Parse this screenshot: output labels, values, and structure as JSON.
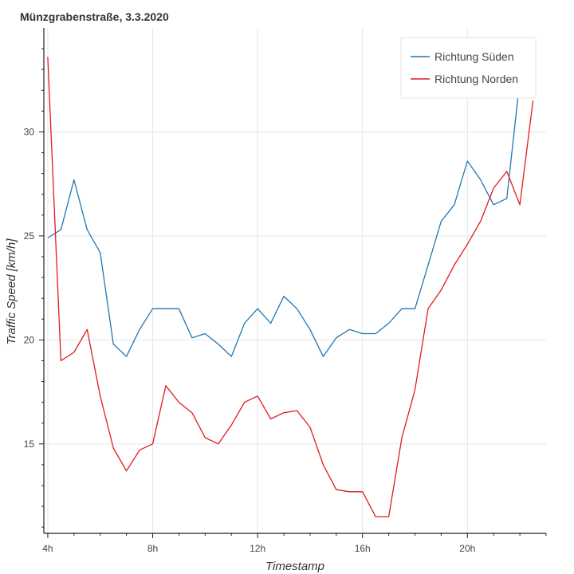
{
  "chart_data": {
    "type": "line",
    "title": "Münzgrabenstraße, 3.3.2020",
    "xlabel": "Timestamp",
    "ylabel": "Traffic Speed [km/h]",
    "xlim": [
      3.85,
      23.0
    ],
    "ylim": [
      10.7,
      35.0
    ],
    "x_ticks": [
      {
        "value": 4,
        "label": "4h"
      },
      {
        "value": 8,
        "label": "8h"
      },
      {
        "value": 12,
        "label": "12h"
      },
      {
        "value": 16,
        "label": "16h"
      },
      {
        "value": 20,
        "label": "20h"
      }
    ],
    "y_ticks": [
      {
        "value": 15,
        "label": "15"
      },
      {
        "value": 20,
        "label": "20"
      },
      {
        "value": 25,
        "label": "25"
      },
      {
        "value": 30,
        "label": "30"
      }
    ],
    "grid": true,
    "legend_position": "top-right",
    "x": [
      4,
      4.5,
      5,
      5.5,
      6,
      6.5,
      7,
      7.5,
      8,
      8.5,
      9,
      9.5,
      10,
      10.5,
      11,
      11.5,
      12,
      12.5,
      13,
      13.5,
      14,
      14.5,
      15,
      15.5,
      16,
      16.5,
      17,
      17.5,
      18,
      18.5,
      19,
      19.5,
      20,
      20.5,
      21,
      21.5,
      22,
      22.5
    ],
    "series": [
      {
        "name": "Richtung Süden",
        "color": "#1f77b4",
        "values": [
          24.9,
          25.3,
          27.7,
          25.3,
          24.2,
          19.8,
          19.2,
          20.5,
          21.5,
          21.5,
          21.5,
          20.1,
          20.3,
          19.8,
          19.2,
          20.8,
          21.5,
          20.8,
          22.1,
          21.5,
          20.5,
          19.2,
          20.1,
          20.5,
          20.3,
          20.3,
          20.8,
          21.5,
          21.5,
          23.6,
          25.7,
          26.5,
          28.6,
          27.7,
          26.5,
          26.8,
          32.5,
          34.0
        ]
      },
      {
        "name": "Richtung Norden",
        "color": "#e31a1c",
        "values": [
          33.6,
          19.0,
          19.4,
          20.5,
          17.3,
          14.8,
          13.7,
          14.7,
          15.0,
          17.8,
          17.0,
          16.5,
          15.3,
          15.0,
          15.9,
          17.0,
          17.3,
          16.2,
          16.5,
          16.6,
          15.8,
          14.0,
          12.8,
          12.7,
          12.7,
          11.5,
          11.5,
          15.3,
          17.6,
          21.5,
          22.4,
          23.6,
          24.6,
          25.7,
          27.3,
          28.1,
          26.5,
          31.5
        ]
      }
    ]
  }
}
